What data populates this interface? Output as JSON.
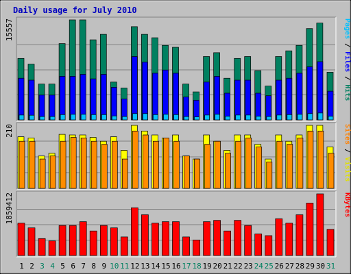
{
  "chart_data": {
    "type": "bar",
    "title": "Daily usage for July 2010",
    "categories": [
      "1",
      "2",
      "3",
      "4",
      "5",
      "6",
      "7",
      "8",
      "9",
      "10",
      "11",
      "12",
      "13",
      "14",
      "15",
      "16",
      "17",
      "18",
      "19",
      "20",
      "21",
      "22",
      "23",
      "24",
      "25",
      "26",
      "27",
      "28",
      "29",
      "30",
      "31"
    ],
    "weekend_days": [
      "3",
      "4",
      "10",
      "11",
      "17",
      "18",
      "24",
      "25",
      "31"
    ],
    "panels": [
      {
        "id": "hits",
        "ymax_label": "15557",
        "ymax": 15557,
        "label_parts": [
          {
            "text": "Pages",
            "color": "#00c0ff"
          },
          {
            "text": " / ",
            "color": "#000000"
          },
          {
            "text": "Files",
            "color": "#0000ff"
          },
          {
            "text": " / ",
            "color": "#000000"
          },
          {
            "text": "Hits",
            "color": "#007f5f"
          }
        ],
        "series": [
          {
            "name": "Hits",
            "color": "#008060",
            "values": [
              9560,
              8670,
              5570,
              5570,
              11870,
              15557,
              15557,
              12460,
              13310,
              5880,
              4960,
              14500,
              13310,
              12780,
              11590,
              11300,
              5570,
              4360,
              9860,
              10450,
              6480,
              9560,
              9860,
              7660,
              5260,
              9860,
              10740,
              11590,
              14200,
              15070,
              7420
            ]
          },
          {
            "name": "Files",
            "color": "#0000ff",
            "values": [
              6480,
              6180,
              3860,
              3860,
              6780,
              6780,
              7090,
              6380,
              7090,
              5070,
              3260,
              9860,
              8970,
              7260,
              7760,
              7260,
              3560,
              3060,
              5880,
              6780,
              4160,
              6180,
              6180,
              4160,
              3760,
              6180,
              6480,
              7260,
              8260,
              9060,
              4460
            ]
          },
          {
            "name": "Pages",
            "color": "#00c0ff",
            "values": [
              760,
              720,
              520,
              520,
              820,
              860,
              860,
              820,
              820,
              620,
              520,
              980,
              980,
              820,
              860,
              820,
              520,
              470,
              760,
              860,
              570,
              760,
              760,
              570,
              520,
              760,
              820,
              860,
              980,
              1080,
              570
            ]
          }
        ]
      },
      {
        "id": "visits",
        "ymax_label": "210",
        "ymax": 210,
        "label_parts": [
          {
            "text": "Sites",
            "color": "#ff8000"
          },
          {
            "text": " / ",
            "color": "#000000"
          },
          {
            "text": "Visits",
            "color": "#e0e000"
          }
        ],
        "series": [
          {
            "name": "Visits",
            "color": "#ffff00",
            "values": [
              172,
              168,
              108,
              117,
              180,
              178,
              178,
              170,
              157,
              172,
              127,
              210,
              191,
              178,
              168,
              178,
              108,
              98,
              178,
              157,
              127,
              178,
              178,
              147,
              98,
              178,
              157,
              178,
              210,
              210,
              138
            ]
          },
          {
            "name": "Sites",
            "color": "#ff8c00",
            "values": [
              157,
              157,
              98,
              108,
              157,
              170,
              168,
              157,
              147,
              157,
              98,
              191,
              178,
              157,
              168,
              157,
              108,
              98,
              147,
              157,
              117,
              157,
              168,
              138,
              88,
              157,
              147,
              168,
              191,
              191,
              117
            ]
          }
        ]
      },
      {
        "id": "kbytes",
        "ymax_label": "1859412",
        "ymax": 1859412,
        "label_parts": [
          {
            "text": "KBytes",
            "color": "#ff0000"
          }
        ],
        "series": [
          {
            "name": "KBytes",
            "color": "#ff0000",
            "values": [
              975000,
              835000,
              510000,
              440000,
              905000,
              905000,
              1020000,
              740000,
              905000,
              835000,
              560000,
              1440000,
              1230000,
              975000,
              1020000,
              1020000,
              560000,
              470000,
              1020000,
              1060000,
              740000,
              1060000,
              905000,
              650000,
              600000,
              1110000,
              975000,
              1230000,
              1580000,
              1859412,
              790000
            ]
          }
        ]
      }
    ]
  }
}
